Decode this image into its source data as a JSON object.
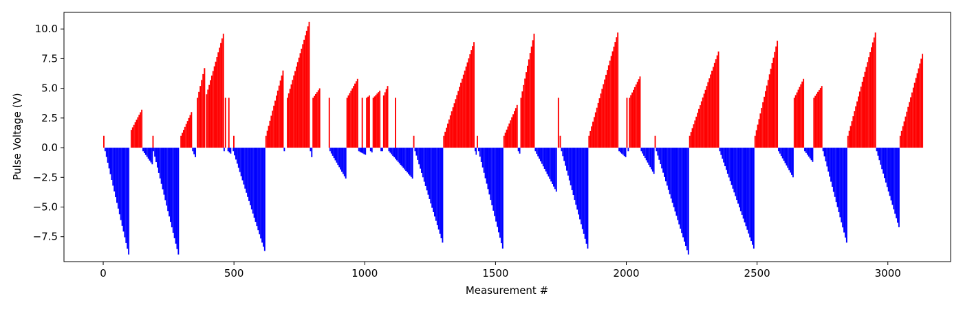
{
  "chart_data": {
    "type": "bar",
    "title": "",
    "xlabel": "Measurement #",
    "ylabel": "Pulse Voltage (V)",
    "xlim": [
      -150,
      3240
    ],
    "ylim": [
      -9.6,
      11.4
    ],
    "xticks": [
      0,
      500,
      1000,
      1500,
      2000,
      2500,
      3000
    ],
    "xtick_labels": [
      "0",
      "500",
      "1000",
      "1500",
      "2000",
      "2500",
      "3000"
    ],
    "yticks": [
      -7.5,
      -5.0,
      -2.5,
      0.0,
      2.5,
      5.0,
      7.5,
      10.0
    ],
    "ytick_labels": [
      "−7.5",
      "−5.0",
      "−2.5",
      "0.0",
      "2.5",
      "5.0",
      "7.5",
      "10.0"
    ],
    "grid": false,
    "colors": {
      "positive": "#ff0000",
      "negative": "#0000ff",
      "axes": "#000000"
    },
    "series": [
      {
        "color": "#ff0000",
        "segments": [
          {
            "x_start": 0,
            "x_end": 5,
            "v_start": 1.0,
            "v_end": 1.0
          },
          {
            "x_start": 105,
            "x_end": 150,
            "v_start": 1.5,
            "v_end": 3.2
          },
          {
            "x_start": 188,
            "x_end": 193,
            "v_start": 1.0,
            "v_end": 1.0
          },
          {
            "x_start": 295,
            "x_end": 340,
            "v_start": 1.0,
            "v_end": 3.0
          },
          {
            "x_start": 358,
            "x_end": 390,
            "v_start": 4.2,
            "v_end": 6.7
          },
          {
            "x_start": 393,
            "x_end": 462,
            "v_start": 4.5,
            "v_end": 9.6
          },
          {
            "x_start": 465,
            "x_end": 470,
            "v_start": 4.2,
            "v_end": 4.2
          },
          {
            "x_start": 478,
            "x_end": 483,
            "v_start": 4.2,
            "v_end": 4.2
          },
          {
            "x_start": 497,
            "x_end": 502,
            "v_start": 1.0,
            "v_end": 1.0
          },
          {
            "x_start": 620,
            "x_end": 690,
            "v_start": 1.0,
            "v_end": 6.5
          },
          {
            "x_start": 702,
            "x_end": 790,
            "v_start": 4.2,
            "v_end": 10.6
          },
          {
            "x_start": 800,
            "x_end": 830,
            "v_start": 4.2,
            "v_end": 5.0
          },
          {
            "x_start": 862,
            "x_end": 867,
            "v_start": 4.2,
            "v_end": 4.2
          },
          {
            "x_start": 930,
            "x_end": 975,
            "v_start": 4.2,
            "v_end": 5.8
          },
          {
            "x_start": 988,
            "x_end": 993,
            "v_start": 4.2,
            "v_end": 4.2
          },
          {
            "x_start": 1005,
            "x_end": 1020,
            "v_start": 4.2,
            "v_end": 4.4
          },
          {
            "x_start": 1030,
            "x_end": 1060,
            "v_start": 4.2,
            "v_end": 4.8
          },
          {
            "x_start": 1070,
            "x_end": 1090,
            "v_start": 4.4,
            "v_end": 5.2
          },
          {
            "x_start": 1115,
            "x_end": 1120,
            "v_start": 4.2,
            "v_end": 4.2
          },
          {
            "x_start": 1185,
            "x_end": 1190,
            "v_start": 1.0,
            "v_end": 1.0
          },
          {
            "x_start": 1300,
            "x_end": 1420,
            "v_start": 1.0,
            "v_end": 8.9
          },
          {
            "x_start": 1428,
            "x_end": 1433,
            "v_start": 1.0,
            "v_end": 1.0
          },
          {
            "x_start": 1530,
            "x_end": 1585,
            "v_start": 1.0,
            "v_end": 3.6
          },
          {
            "x_start": 1595,
            "x_end": 1650,
            "v_start": 4.2,
            "v_end": 9.6
          },
          {
            "x_start": 1738,
            "x_end": 1743,
            "v_start": 4.2,
            "v_end": 4.2
          },
          {
            "x_start": 1745,
            "x_end": 1750,
            "v_start": 1.0,
            "v_end": 1.0
          },
          {
            "x_start": 1855,
            "x_end": 1970,
            "v_start": 1.0,
            "v_end": 9.7
          },
          {
            "x_start": 2000,
            "x_end": 2005,
            "v_start": 4.2,
            "v_end": 4.2
          },
          {
            "x_start": 2010,
            "x_end": 2055,
            "v_start": 4.2,
            "v_end": 6.0
          },
          {
            "x_start": 2108,
            "x_end": 2113,
            "v_start": 1.0,
            "v_end": 1.0
          },
          {
            "x_start": 2240,
            "x_end": 2355,
            "v_start": 1.0,
            "v_end": 8.1
          },
          {
            "x_start": 2490,
            "x_end": 2580,
            "v_start": 1.0,
            "v_end": 9.0
          },
          {
            "x_start": 2640,
            "x_end": 2680,
            "v_start": 4.2,
            "v_end": 5.8
          },
          {
            "x_start": 2715,
            "x_end": 2750,
            "v_start": 4.2,
            "v_end": 5.2
          },
          {
            "x_start": 2845,
            "x_end": 2955,
            "v_start": 1.0,
            "v_end": 9.7
          },
          {
            "x_start": 3045,
            "x_end": 3135,
            "v_start": 1.0,
            "v_end": 7.9
          }
        ]
      },
      {
        "color": "#0000ff",
        "segments": [
          {
            "x_start": 5,
            "x_end": 100,
            "v_start": -0.3,
            "v_end": -9.0
          },
          {
            "x_start": 150,
            "x_end": 190,
            "v_start": -0.3,
            "v_end": -1.4
          },
          {
            "x_start": 190,
            "x_end": 290,
            "v_start": -0.3,
            "v_end": -9.0
          },
          {
            "x_start": 340,
            "x_end": 355,
            "v_start": -0.3,
            "v_end": -0.8
          },
          {
            "x_start": 460,
            "x_end": 465,
            "v_start": -0.3,
            "v_end": -0.3
          },
          {
            "x_start": 475,
            "x_end": 490,
            "v_start": -0.3,
            "v_end": -0.5
          },
          {
            "x_start": 495,
            "x_end": 620,
            "v_start": -0.3,
            "v_end": -8.7
          },
          {
            "x_start": 690,
            "x_end": 695,
            "v_start": -0.3,
            "v_end": -0.3
          },
          {
            "x_start": 790,
            "x_end": 800,
            "v_start": -0.3,
            "v_end": -0.8
          },
          {
            "x_start": 865,
            "x_end": 930,
            "v_start": -0.3,
            "v_end": -2.6
          },
          {
            "x_start": 975,
            "x_end": 1005,
            "v_start": -0.3,
            "v_end": -0.6
          },
          {
            "x_start": 1020,
            "x_end": 1030,
            "v_start": -0.3,
            "v_end": -0.4
          },
          {
            "x_start": 1060,
            "x_end": 1070,
            "v_start": -0.3,
            "v_end": -0.3
          },
          {
            "x_start": 1090,
            "x_end": 1185,
            "v_start": -0.3,
            "v_end": -2.6
          },
          {
            "x_start": 1190,
            "x_end": 1300,
            "v_start": -0.3,
            "v_end": -8.0
          },
          {
            "x_start": 1420,
            "x_end": 1428,
            "v_start": -0.3,
            "v_end": -0.6
          },
          {
            "x_start": 1433,
            "x_end": 1530,
            "v_start": -0.3,
            "v_end": -8.5
          },
          {
            "x_start": 1585,
            "x_end": 1595,
            "v_start": -0.3,
            "v_end": -0.5
          },
          {
            "x_start": 1650,
            "x_end": 1735,
            "v_start": -0.3,
            "v_end": -3.7
          },
          {
            "x_start": 1750,
            "x_end": 1855,
            "v_start": -0.3,
            "v_end": -8.5
          },
          {
            "x_start": 1970,
            "x_end": 2000,
            "v_start": -0.3,
            "v_end": -0.8
          },
          {
            "x_start": 2005,
            "x_end": 2010,
            "v_start": -0.3,
            "v_end": -0.3
          },
          {
            "x_start": 2055,
            "x_end": 2108,
            "v_start": -0.3,
            "v_end": -2.2
          },
          {
            "x_start": 2113,
            "x_end": 2240,
            "v_start": -0.3,
            "v_end": -9.0
          },
          {
            "x_start": 2355,
            "x_end": 2490,
            "v_start": -0.3,
            "v_end": -8.5
          },
          {
            "x_start": 2580,
            "x_end": 2640,
            "v_start": -0.3,
            "v_end": -2.5
          },
          {
            "x_start": 2680,
            "x_end": 2715,
            "v_start": -0.3,
            "v_end": -1.2
          },
          {
            "x_start": 2750,
            "x_end": 2845,
            "v_start": -0.3,
            "v_end": -8.0
          },
          {
            "x_start": 2955,
            "x_end": 3045,
            "v_start": -0.3,
            "v_end": -6.7
          }
        ]
      }
    ]
  }
}
